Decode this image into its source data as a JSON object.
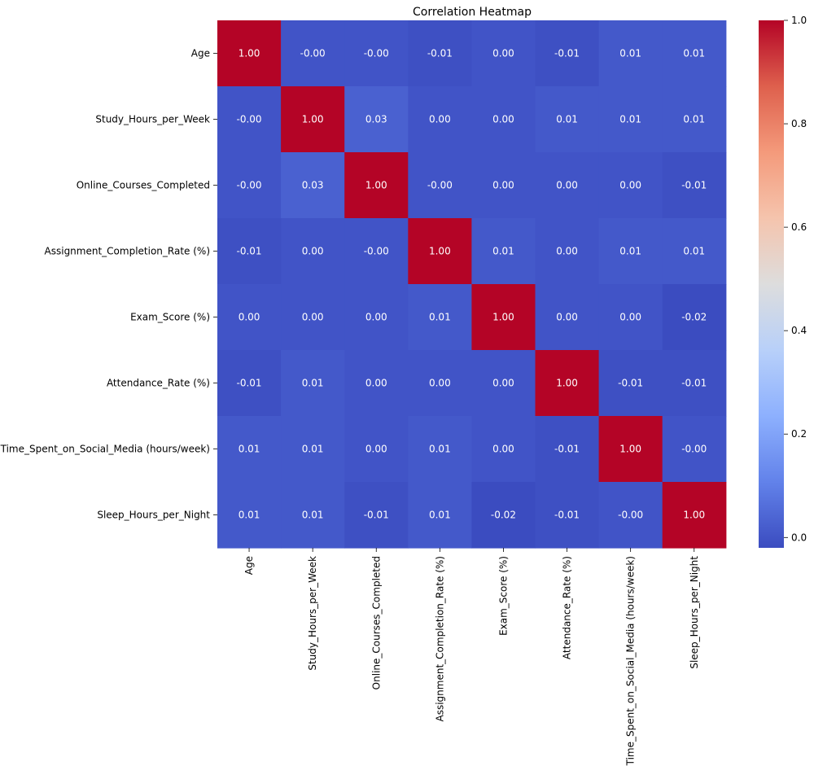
{
  "chart_data": {
    "type": "heatmap",
    "title": "Correlation Heatmap",
    "xlabel": "",
    "ylabel": "",
    "colormap": "coolwarm",
    "value_range": [
      -0.02,
      1.0
    ],
    "row_labels": [
      "Age",
      "Study_Hours_per_Week",
      "Online_Courses_Completed",
      "Assignment_Completion_Rate (%)",
      "Exam_Score (%)",
      "Attendance_Rate (%)",
      "Time_Spent_on_Social_Media (hours/week)",
      "Sleep_Hours_per_Night"
    ],
    "col_labels": [
      "Age",
      "Study_Hours_per_Week",
      "Online_Courses_Completed",
      "Assignment_Completion_Rate (%)",
      "Exam_Score (%)",
      "Attendance_Rate (%)",
      "Time_Spent_on_Social_Media (hours/week)",
      "Sleep_Hours_per_Night"
    ],
    "values": [
      [
        1.0,
        -0.0,
        -0.0,
        -0.01,
        0.0,
        -0.01,
        0.01,
        0.01
      ],
      [
        -0.0,
        1.0,
        0.03,
        0.0,
        0.0,
        0.01,
        0.01,
        0.01
      ],
      [
        -0.0,
        0.03,
        1.0,
        -0.0,
        0.0,
        0.0,
        0.0,
        -0.01
      ],
      [
        -0.01,
        0.0,
        -0.0,
        1.0,
        0.01,
        0.0,
        0.01,
        0.01
      ],
      [
        0.0,
        0.0,
        0.0,
        0.01,
        1.0,
        0.0,
        0.0,
        -0.02
      ],
      [
        -0.01,
        0.01,
        0.0,
        0.0,
        0.0,
        1.0,
        -0.01,
        -0.01
      ],
      [
        0.01,
        0.01,
        0.0,
        0.01,
        0.0,
        -0.01,
        1.0,
        -0.0
      ],
      [
        0.01,
        0.01,
        -0.01,
        0.01,
        -0.02,
        -0.01,
        -0.0,
        1.0
      ]
    ],
    "annotations": [
      [
        "1.00",
        "-0.00",
        "-0.00",
        "-0.01",
        "0.00",
        "-0.01",
        "0.01",
        "0.01"
      ],
      [
        "-0.00",
        "1.00",
        "0.03",
        "0.00",
        "0.00",
        "0.01",
        "0.01",
        "0.01"
      ],
      [
        "-0.00",
        "0.03",
        "1.00",
        "-0.00",
        "0.00",
        "0.00",
        "0.00",
        "-0.01"
      ],
      [
        "-0.01",
        "0.00",
        "-0.00",
        "1.00",
        "0.01",
        "0.00",
        "0.01",
        "0.01"
      ],
      [
        "0.00",
        "0.00",
        "0.00",
        "0.01",
        "1.00",
        "0.00",
        "0.00",
        "-0.02"
      ],
      [
        "-0.01",
        "0.01",
        "0.00",
        "0.00",
        "0.00",
        "1.00",
        "-0.01",
        "-0.01"
      ],
      [
        "0.01",
        "0.01",
        "0.00",
        "0.01",
        "0.00",
        "-0.01",
        "1.00",
        "-0.00"
      ],
      [
        "0.01",
        "0.01",
        "-0.01",
        "0.01",
        "-0.02",
        "-0.01",
        "-0.00",
        "1.00"
      ]
    ],
    "colorbar": {
      "ticks": [
        0.0,
        0.2,
        0.4,
        0.6,
        0.8,
        1.0
      ],
      "tick_labels": [
        "0.0",
        "0.2",
        "0.4",
        "0.6",
        "0.8",
        "1.0"
      ]
    },
    "grid": false,
    "legend": "none"
  }
}
